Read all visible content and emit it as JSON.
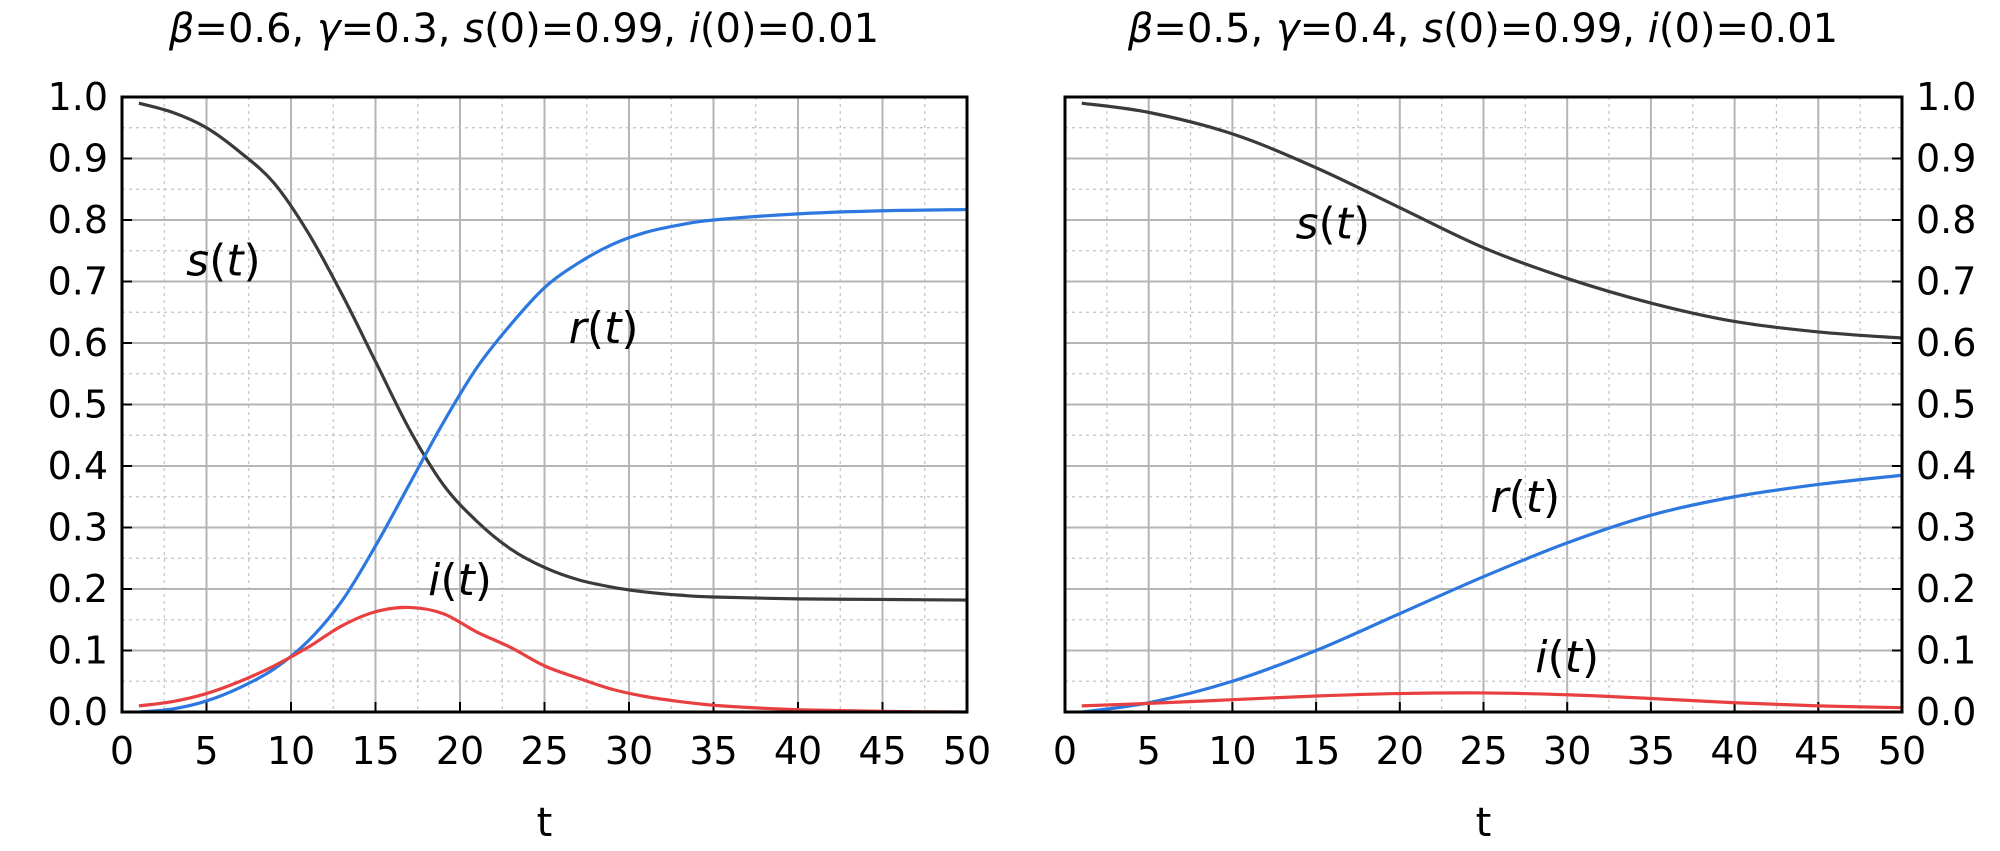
{
  "chart_data": [
    {
      "type": "line",
      "title": "β=0.6, γ=0.3, s(0)=0.99, i(0)=0.01",
      "title_parts": [
        {
          "text": "β",
          "italic": true
        },
        {
          "text": "=0.6, ",
          "italic": false
        },
        {
          "text": "γ",
          "italic": true
        },
        {
          "text": "=0.3, ",
          "italic": false
        },
        {
          "text": "s",
          "italic": true
        },
        {
          "text": "(0)=0.99, ",
          "italic": false
        },
        {
          "text": "i",
          "italic": true
        },
        {
          "text": "(0)=0.01",
          "italic": false
        }
      ],
      "xlabel": "t",
      "ylabel": "",
      "xlim": [
        0,
        50
      ],
      "ylim": [
        0,
        1
      ],
      "x_ticks": [
        "0",
        "5",
        "10",
        "15",
        "20",
        "25",
        "30",
        "35",
        "40",
        "45",
        "50"
      ],
      "y_ticks": [
        "0.0",
        "0.1",
        "0.2",
        "0.3",
        "0.4",
        "0.5",
        "0.6",
        "0.7",
        "0.8",
        "0.9",
        "1.0"
      ],
      "y_tick_side": "left",
      "grid": true,
      "series": [
        {
          "name": "s",
          "color": "#3a3a3a",
          "x": [
            1,
            3,
            5,
            7,
            9,
            11,
            13,
            15,
            17,
            19,
            21,
            23,
            25,
            27,
            29,
            31,
            33,
            35,
            40,
            45,
            50
          ],
          "values": [
            0.99,
            0.975,
            0.95,
            0.91,
            0.86,
            0.78,
            0.68,
            0.57,
            0.46,
            0.37,
            0.31,
            0.265,
            0.235,
            0.215,
            0.203,
            0.195,
            0.19,
            0.187,
            0.184,
            0.183,
            0.182
          ]
        },
        {
          "name": "r",
          "color": "#2c78e0",
          "x": [
            1,
            3,
            5,
            7,
            9,
            11,
            13,
            15,
            17,
            19,
            21,
            23,
            25,
            27,
            29,
            31,
            33,
            35,
            40,
            45,
            50
          ],
          "values": [
            0.0,
            0.005,
            0.018,
            0.04,
            0.07,
            0.115,
            0.18,
            0.27,
            0.37,
            0.47,
            0.56,
            0.63,
            0.69,
            0.73,
            0.76,
            0.78,
            0.792,
            0.8,
            0.81,
            0.815,
            0.817
          ]
        },
        {
          "name": "i",
          "color": "#e84040",
          "x": [
            1,
            3,
            5,
            7,
            9,
            11,
            13,
            15,
            17,
            19,
            21,
            23,
            25,
            27,
            29,
            31,
            33,
            35,
            38,
            41,
            45,
            50
          ],
          "values": [
            0.01,
            0.017,
            0.03,
            0.05,
            0.075,
            0.105,
            0.14,
            0.163,
            0.17,
            0.16,
            0.13,
            0.105,
            0.075,
            0.055,
            0.037,
            0.025,
            0.017,
            0.011,
            0.006,
            0.003,
            0.001,
            0.0
          ]
        }
      ],
      "annotations": [
        {
          "series": "s",
          "text_parts": [
            {
              "text": "s",
              "italic": true
            },
            {
              "text": "(",
              "italic": false
            },
            {
              "text": "t",
              "italic": true
            },
            {
              "text": ")",
              "italic": false
            }
          ],
          "x": 6.0,
          "y": 0.71
        },
        {
          "series": "r",
          "text_parts": [
            {
              "text": "r",
              "italic": true
            },
            {
              "text": "(",
              "italic": false
            },
            {
              "text": "t",
              "italic": true
            },
            {
              "text": ")",
              "italic": false
            }
          ],
          "x": 28.5,
          "y": 0.6
        },
        {
          "series": "i",
          "text_parts": [
            {
              "text": "i",
              "italic": true
            },
            {
              "text": "(",
              "italic": false
            },
            {
              "text": "t",
              "italic": true
            },
            {
              "text": ")",
              "italic": false
            }
          ],
          "x": 20.0,
          "y": 0.19
        }
      ]
    },
    {
      "type": "line",
      "title": "β=0.5, γ=0.4, s(0)=0.99, i(0)=0.01",
      "title_parts": [
        {
          "text": "β",
          "italic": true
        },
        {
          "text": "=0.5, ",
          "italic": false
        },
        {
          "text": "γ",
          "italic": true
        },
        {
          "text": "=0.4, ",
          "italic": false
        },
        {
          "text": "s",
          "italic": true
        },
        {
          "text": "(0)=0.99, ",
          "italic": false
        },
        {
          "text": "i",
          "italic": true
        },
        {
          "text": "(0)=0.01",
          "italic": false
        }
      ],
      "xlabel": "t",
      "ylabel": "",
      "xlim": [
        0,
        50
      ],
      "ylim": [
        0,
        1
      ],
      "x_ticks": [
        "0",
        "5",
        "10",
        "15",
        "20",
        "25",
        "30",
        "35",
        "40",
        "45",
        "50"
      ],
      "y_ticks": [
        "0.0",
        "0.1",
        "0.2",
        "0.3",
        "0.4",
        "0.5",
        "0.6",
        "0.7",
        "0.8",
        "0.9",
        "1.0"
      ],
      "y_tick_side": "right",
      "grid": true,
      "series": [
        {
          "name": "s",
          "color": "#3a3a3a",
          "x": [
            1,
            5,
            10,
            15,
            20,
            25,
            30,
            35,
            40,
            45,
            50
          ],
          "values": [
            0.99,
            0.975,
            0.94,
            0.885,
            0.82,
            0.755,
            0.705,
            0.665,
            0.635,
            0.618,
            0.608
          ]
        },
        {
          "name": "r",
          "color": "#2c78e0",
          "x": [
            1,
            5,
            10,
            15,
            20,
            25,
            30,
            35,
            40,
            45,
            50
          ],
          "values": [
            0.0,
            0.015,
            0.05,
            0.1,
            0.16,
            0.22,
            0.275,
            0.32,
            0.35,
            0.37,
            0.385
          ]
        },
        {
          "name": "i",
          "color": "#e84040",
          "x": [
            1,
            5,
            10,
            15,
            20,
            25,
            30,
            35,
            40,
            45,
            50
          ],
          "values": [
            0.01,
            0.014,
            0.02,
            0.026,
            0.03,
            0.031,
            0.028,
            0.022,
            0.015,
            0.01,
            0.007
          ]
        }
      ],
      "annotations": [
        {
          "series": "s",
          "text_parts": [
            {
              "text": "s",
              "italic": true
            },
            {
              "text": "(",
              "italic": false
            },
            {
              "text": "t",
              "italic": true
            },
            {
              "text": ")",
              "italic": false
            }
          ],
          "x": 16.0,
          "y": 0.77
        },
        {
          "series": "r",
          "text_parts": [
            {
              "text": "r",
              "italic": true
            },
            {
              "text": "(",
              "italic": false
            },
            {
              "text": "t",
              "italic": true
            },
            {
              "text": ")",
              "italic": false
            }
          ],
          "x": 27.5,
          "y": 0.325
        },
        {
          "series": "i",
          "text_parts": [
            {
              "text": "i",
              "italic": true
            },
            {
              "text": "(",
              "italic": false
            },
            {
              "text": "t",
              "italic": true
            },
            {
              "text": ")",
              "italic": false
            }
          ],
          "x": 30.0,
          "y": 0.065
        }
      ]
    }
  ]
}
